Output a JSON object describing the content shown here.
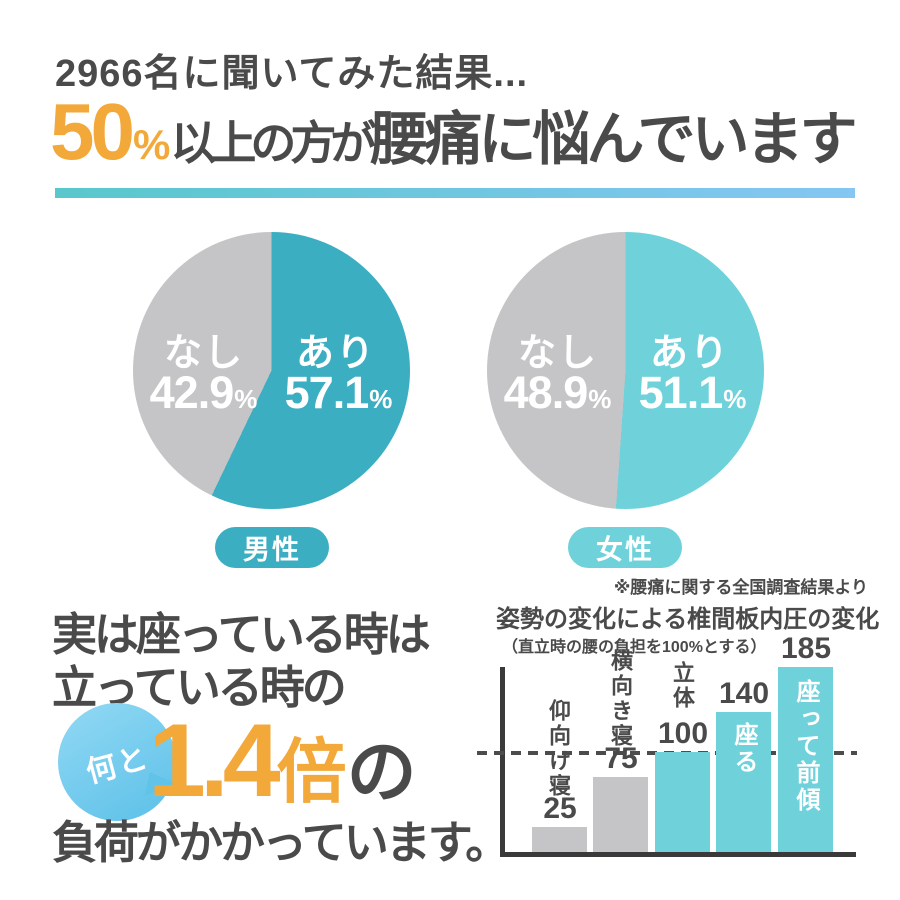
{
  "colors": {
    "text_dark": "#4a4a4b",
    "accent_orange": "#f3a83a",
    "teal": "#3baec2",
    "light_teal": "#6fd2db",
    "neutral_gray": "#c5c5c7",
    "divider_gradient_start": "#59c7cc",
    "divider_gradient_end": "#85c6f3",
    "bubble_blue": "#6ec9ee",
    "axis": "#3a3a3a"
  },
  "labels": {
    "percent": "%"
  },
  "header": {
    "intro": "2966名に聞いてみた結果...",
    "big_number": "50",
    "percent_sign": "%",
    "mid_text": "以上の方が",
    "main_text": "腰痛に悩んでいます"
  },
  "survey_note": "※腰痛に関する全国調査結果より",
  "message": {
    "line1": "実は座っている時は",
    "line2": "立っている時の",
    "bubble_text": "何と",
    "multiplier": "1.4",
    "multiplier_unit": "倍",
    "multiplier_suffix": "の",
    "line3": "負荷がかかっています。"
  },
  "chart_data": [
    {
      "type": "pie",
      "title": "男性",
      "start_angle": "top",
      "direction": "clockwise",
      "slices": [
        {
          "label": "あり",
          "value": 57.1,
          "color": "#3baec2"
        },
        {
          "label": "なし",
          "value": 42.9,
          "color": "#c5c5c7"
        }
      ]
    },
    {
      "type": "pie",
      "title": "女性",
      "start_angle": "top",
      "direction": "clockwise",
      "slices": [
        {
          "label": "あり",
          "value": 51.1,
          "color": "#6fd2db"
        },
        {
          "label": "なし",
          "value": 48.9,
          "color": "#c5c5c7"
        }
      ]
    },
    {
      "type": "bar",
      "title": "姿勢の変化による椎間板内圧の変化",
      "subtitle": "（直立時の腰の負担を100%とする）",
      "categories": [
        "仰向け寝",
        "横向き寝",
        "立体",
        "座る",
        "座って前傾"
      ],
      "values": [
        25,
        75,
        100,
        140,
        185
      ],
      "bar_colors": [
        "#c5c5c7",
        "#c5c5c7",
        "#6fd2db",
        "#6fd2db",
        "#6fd2db"
      ],
      "label_placement": [
        "outside",
        "outside",
        "outside",
        "inside",
        "inside"
      ],
      "reference_line": 100,
      "ylim": [
        0,
        190
      ],
      "grid": false,
      "legend": "none"
    }
  ]
}
